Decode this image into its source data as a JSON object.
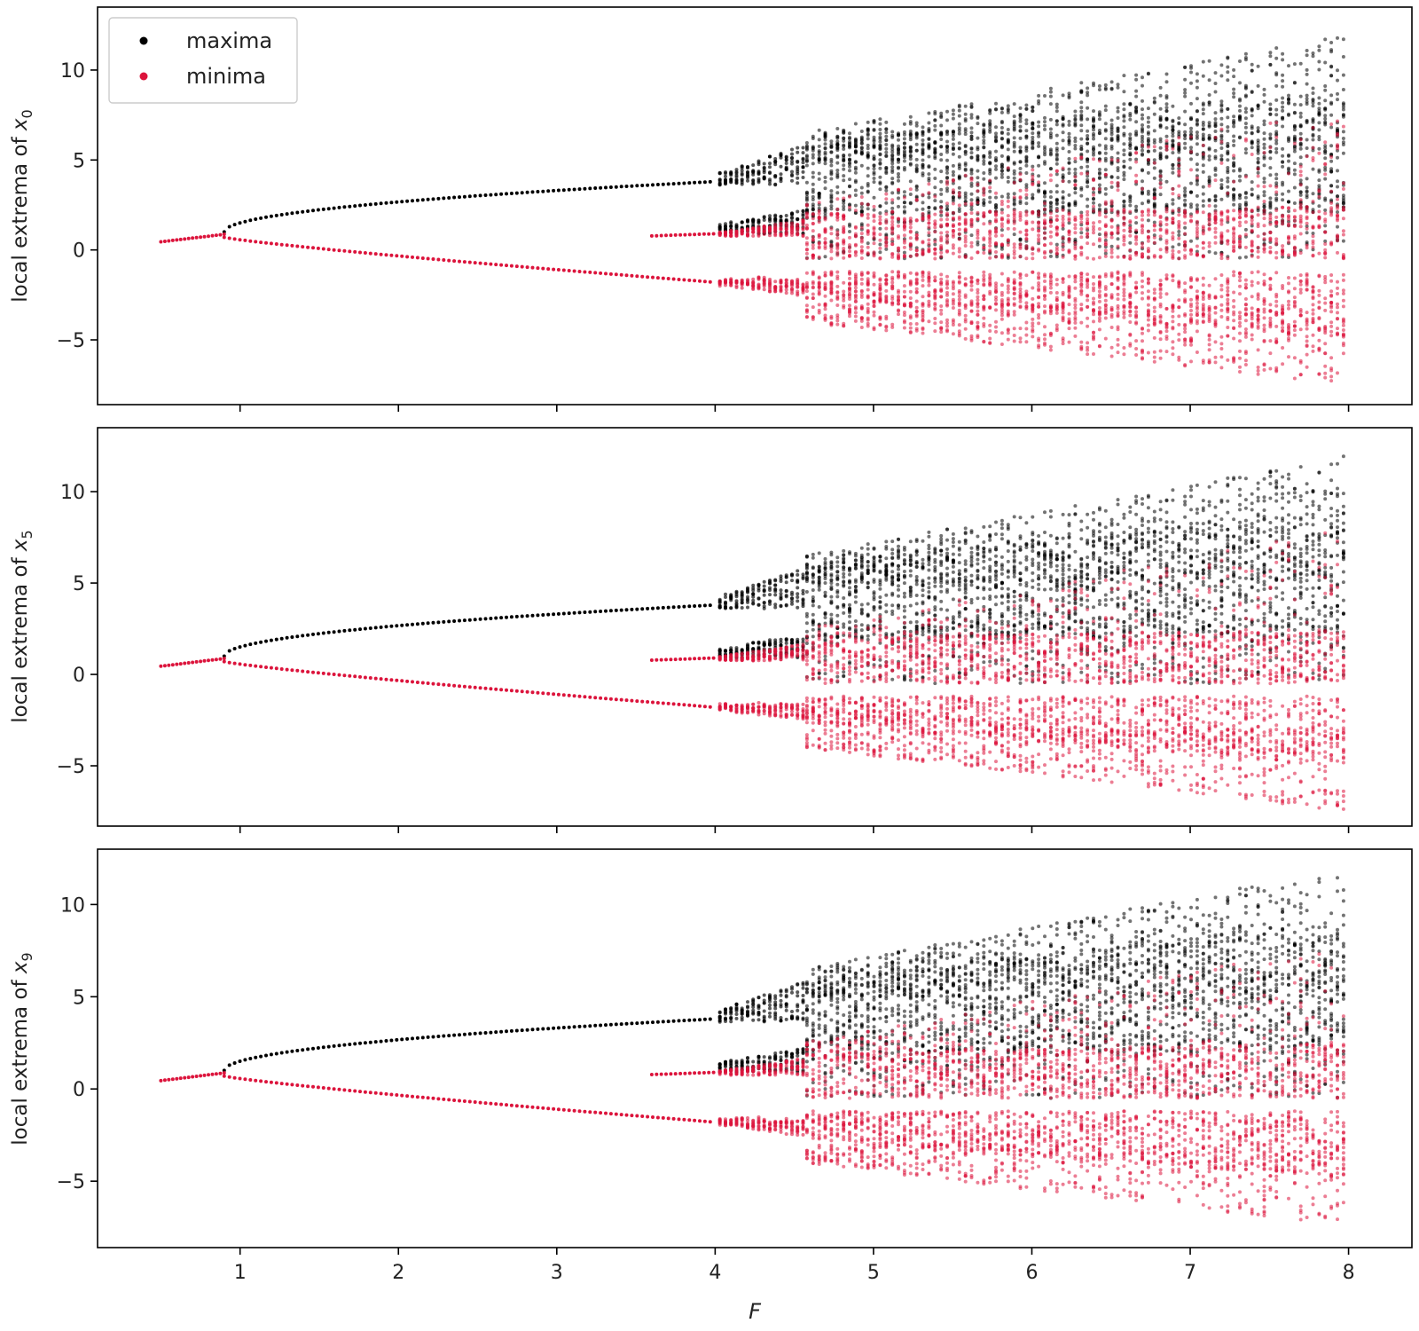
{
  "chart_data": [
    {
      "type": "scatter",
      "panel": "top",
      "ylabel_prefix": "local extrema of ",
      "ylabel_var": "x",
      "ylabel_sub": "0",
      "xlabel": "",
      "xlim": [
        0.1,
        8.4
      ],
      "ylim": [
        -8.6,
        13.5
      ],
      "xticks": [
        1,
        2,
        3,
        4,
        5,
        6,
        7,
        8
      ],
      "yticks": [
        -5,
        0,
        5,
        10
      ],
      "xticklabels_shown": false,
      "legend": {
        "position": "top-left",
        "entries": [
          {
            "label": "maxima",
            "color": "#000000"
          },
          {
            "label": "minima",
            "color": "#dc143c"
          }
        ]
      },
      "series": [
        {
          "name": "maxima",
          "color": "#000000",
          "structure": "x in [0.9,4.0] single branch y from 1.1 to 3.8; chaotic band x in [4.0,8.0] spanning roughly -1 to 12",
          "sample_points": [
            [
              0.9,
              1.1
            ],
            [
              1.5,
              1.9
            ],
            [
              2.0,
              2.4
            ],
            [
              2.5,
              2.8
            ],
            [
              3.0,
              3.2
            ],
            [
              3.5,
              3.5
            ],
            [
              4.0,
              3.8
            ],
            [
              4.3,
              3.9
            ],
            [
              5.0,
              4.5
            ],
            [
              6.0,
              5.5
            ],
            [
              7.0,
              6.0
            ],
            [
              7.9,
              12.4
            ]
          ]
        },
        {
          "name": "minima",
          "color": "#dc143c",
          "structure": "x in [0.5,0.9] y ~0.45-0.9; lower branch to -1.8 at x=4; second branch y~0.8 from x=3.6; chaotic band to about -7.5",
          "sample_points": [
            [
              0.5,
              0.45
            ],
            [
              0.9,
              0.85
            ],
            [
              1.5,
              0.1
            ],
            [
              2.0,
              -0.3
            ],
            [
              3.0,
              -1.1
            ],
            [
              4.0,
              -1.8
            ],
            [
              3.6,
              0.8
            ],
            [
              4.0,
              0.9
            ],
            [
              5.0,
              -2.0
            ],
            [
              6.0,
              -2.5
            ],
            [
              7.0,
              -3.0
            ],
            [
              7.7,
              -7.4
            ]
          ]
        }
      ]
    },
    {
      "type": "scatter",
      "panel": "middle",
      "ylabel_prefix": "local extrema of ",
      "ylabel_var": "x",
      "ylabel_sub": "5",
      "xlabel": "",
      "xlim": [
        0.1,
        8.4
      ],
      "ylim": [
        -8.3,
        13.5
      ],
      "xticks": [
        1,
        2,
        3,
        4,
        5,
        6,
        7,
        8
      ],
      "yticks": [
        -5,
        0,
        5,
        10
      ],
      "xticklabels_shown": false,
      "series": [
        {
          "name": "maxima",
          "color": "#000000",
          "sample_points": [
            [
              0.9,
              1.1
            ],
            [
              2.0,
              2.4
            ],
            [
              3.0,
              3.2
            ],
            [
              4.0,
              3.8
            ],
            [
              5.0,
              4.5
            ],
            [
              6.0,
              5.5
            ],
            [
              7.0,
              6.0
            ],
            [
              7.9,
              12.3
            ]
          ]
        },
        {
          "name": "minima",
          "color": "#dc143c",
          "sample_points": [
            [
              0.5,
              0.45
            ],
            [
              0.9,
              0.85
            ],
            [
              2.0,
              -0.3
            ],
            [
              3.0,
              -1.1
            ],
            [
              4.0,
              -1.8
            ],
            [
              3.6,
              0.8
            ],
            [
              5.0,
              -2.0
            ],
            [
              6.0,
              -2.5
            ],
            [
              7.9,
              -7.0
            ]
          ]
        }
      ]
    },
    {
      "type": "scatter",
      "panel": "bottom",
      "ylabel_prefix": "local extrema of ",
      "ylabel_var": "x",
      "ylabel_sub": "9",
      "xlabel": "F",
      "xlim": [
        0.1,
        8.4
      ],
      "ylim": [
        -8.6,
        13.0
      ],
      "xticks": [
        1,
        2,
        3,
        4,
        5,
        6,
        7,
        8
      ],
      "yticks": [
        -5,
        0,
        5,
        10
      ],
      "xticklabels_shown": true,
      "series": [
        {
          "name": "maxima",
          "color": "#000000",
          "sample_points": [
            [
              0.9,
              1.1
            ],
            [
              2.0,
              2.4
            ],
            [
              3.0,
              3.2
            ],
            [
              4.0,
              3.8
            ],
            [
              5.0,
              4.5
            ],
            [
              6.0,
              5.5
            ],
            [
              7.0,
              6.0
            ],
            [
              8.0,
              12.0
            ]
          ]
        },
        {
          "name": "minima",
          "color": "#dc143c",
          "sample_points": [
            [
              0.5,
              0.45
            ],
            [
              0.9,
              0.85
            ],
            [
              2.0,
              -0.3
            ],
            [
              3.0,
              -1.1
            ],
            [
              4.0,
              -1.8
            ],
            [
              3.6,
              0.8
            ],
            [
              5.0,
              -2.0
            ],
            [
              6.0,
              -2.5
            ],
            [
              7.9,
              -7.5
            ]
          ]
        }
      ]
    }
  ]
}
